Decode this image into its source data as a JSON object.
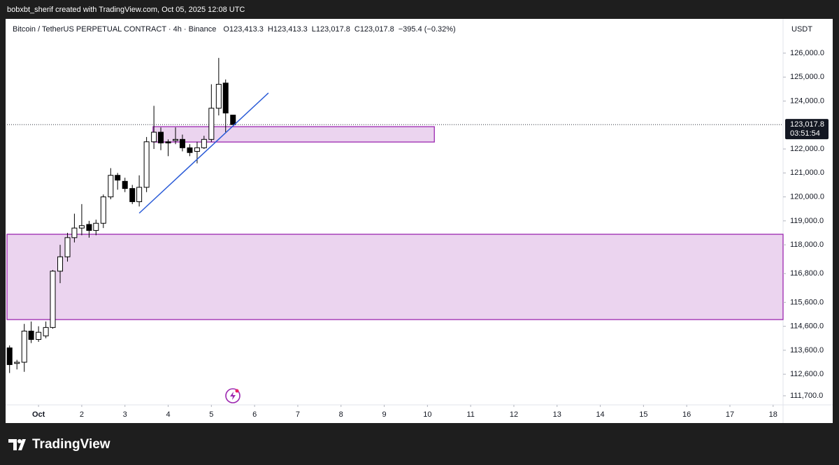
{
  "top_bar": "bobxbt_sherif created with TradingView.com, Oct 05, 2025 12:08 UTC",
  "footer_brand": "TradingView",
  "chart_data": {
    "type": "candlestick",
    "header": {
      "symbol": "Bitcoin / TetherUS PERPETUAL CONTRACT · 4h · Binance",
      "ohlc": [
        {
          "key": "O",
          "value": "123,413.3"
        },
        {
          "key": "H",
          "value": "123,413.3"
        },
        {
          "key": "L",
          "value": "123,017.8"
        },
        {
          "key": "C",
          "value": "123,017.8"
        }
      ],
      "change": "−395.4 (−0.32%)"
    },
    "currency": "USDT",
    "x": [
      0.33,
      0.5,
      0.67,
      0.83,
      1,
      1.17,
      1.33,
      1.5,
      1.67,
      1.83,
      2,
      2.17,
      2.33,
      2.5,
      2.67,
      2.83,
      3,
      3.17,
      3.33,
      3.5,
      3.67,
      3.83,
      4,
      4.17,
      4.33,
      4.5,
      4.67,
      4.83,
      5,
      5.17,
      5.33,
      5.5
    ],
    "open": [
      113700,
      113050,
      113100,
      114400,
      114050,
      114200,
      114550,
      116900,
      117500,
      118300,
      118700,
      118850,
      118600,
      118900,
      120000,
      120900,
      120650,
      120350,
      119800,
      120400,
      122300,
      122700,
      122300,
      122350,
      122400,
      122050,
      121900,
      122050,
      122400,
      123700,
      124750,
      123413.3
    ],
    "high": [
      113800,
      113200,
      114700,
      114800,
      114600,
      114800,
      116950,
      118000,
      118500,
      119300,
      119700,
      119000,
      119050,
      120100,
      121200,
      121000,
      120800,
      120500,
      120900,
      122500,
      123800,
      122900,
      122400,
      122900,
      122600,
      122200,
      122300,
      122550,
      124700,
      125800,
      124900,
      123413.3
    ],
    "low": [
      112650,
      112800,
      112700,
      113900,
      113950,
      114100,
      114500,
      116400,
      117300,
      118100,
      118400,
      118300,
      118400,
      118700,
      119900,
      120300,
      120200,
      119700,
      119600,
      120200,
      122000,
      121950,
      121700,
      122200,
      121900,
      121700,
      121400,
      122000,
      122300,
      123400,
      122700,
      123017.8
    ],
    "close": [
      113000,
      113100,
      114400,
      114050,
      114350,
      114550,
      116900,
      117500,
      118300,
      118700,
      118800,
      118600,
      118900,
      120000,
      120900,
      120700,
      120350,
      119800,
      120400,
      122300,
      122700,
      122250,
      122250,
      122400,
      122050,
      121850,
      122050,
      122400,
      123700,
      124700,
      123500,
      123017.8
    ],
    "up_color": "#ffffff",
    "down_color": "#000000",
    "border_color": "#000000",
    "xlim": [
      0.27,
      18.23
    ],
    "xticks": [
      {
        "value": 1,
        "label": "Oct"
      },
      2,
      3,
      4,
      5,
      6,
      7,
      8,
      9,
      10,
      11,
      12,
      13,
      14,
      15,
      16,
      17,
      18
    ],
    "ylim": [
      111350,
      127400
    ],
    "yticks": [
      {
        "value": 111700,
        "label": "111,700.0"
      },
      {
        "value": 112600,
        "label": "112,600.0"
      },
      {
        "value": 113600,
        "label": "113,600.0"
      },
      {
        "value": 114600,
        "label": "114,600.0"
      },
      {
        "value": 115600,
        "label": "115,600.0"
      },
      {
        "value": 116800,
        "label": "116,800.0"
      },
      {
        "value": 118000,
        "label": "118,000.0"
      },
      {
        "value": 119000,
        "label": "119,000.0"
      },
      {
        "value": 120000,
        "label": "120,000.0"
      },
      {
        "value": 121000,
        "label": "121,000.0"
      },
      {
        "value": 122000,
        "label": "122,000.0"
      },
      {
        "value": 124000,
        "label": "124,000.0"
      },
      {
        "value": 125000,
        "label": "125,000.0"
      },
      {
        "value": 126000,
        "label": "126,000.0"
      }
    ],
    "last_price": {
      "value": 123017.8,
      "label": "123,017.8"
    },
    "countdown": "03:51:54",
    "zones": [
      {
        "x": [
          3.65,
          10.16
        ],
        "y": [
          122290,
          122930
        ]
      },
      {
        "x": [
          0.27,
          18.23
        ],
        "y": [
          114880,
          118440
        ]
      }
    ],
    "zone_color": "#9c27b0",
    "trendline": {
      "x": [
        3.33,
        6.32
      ],
      "y": [
        119320,
        124337
      ],
      "color": "#2a5bd7"
    }
  }
}
